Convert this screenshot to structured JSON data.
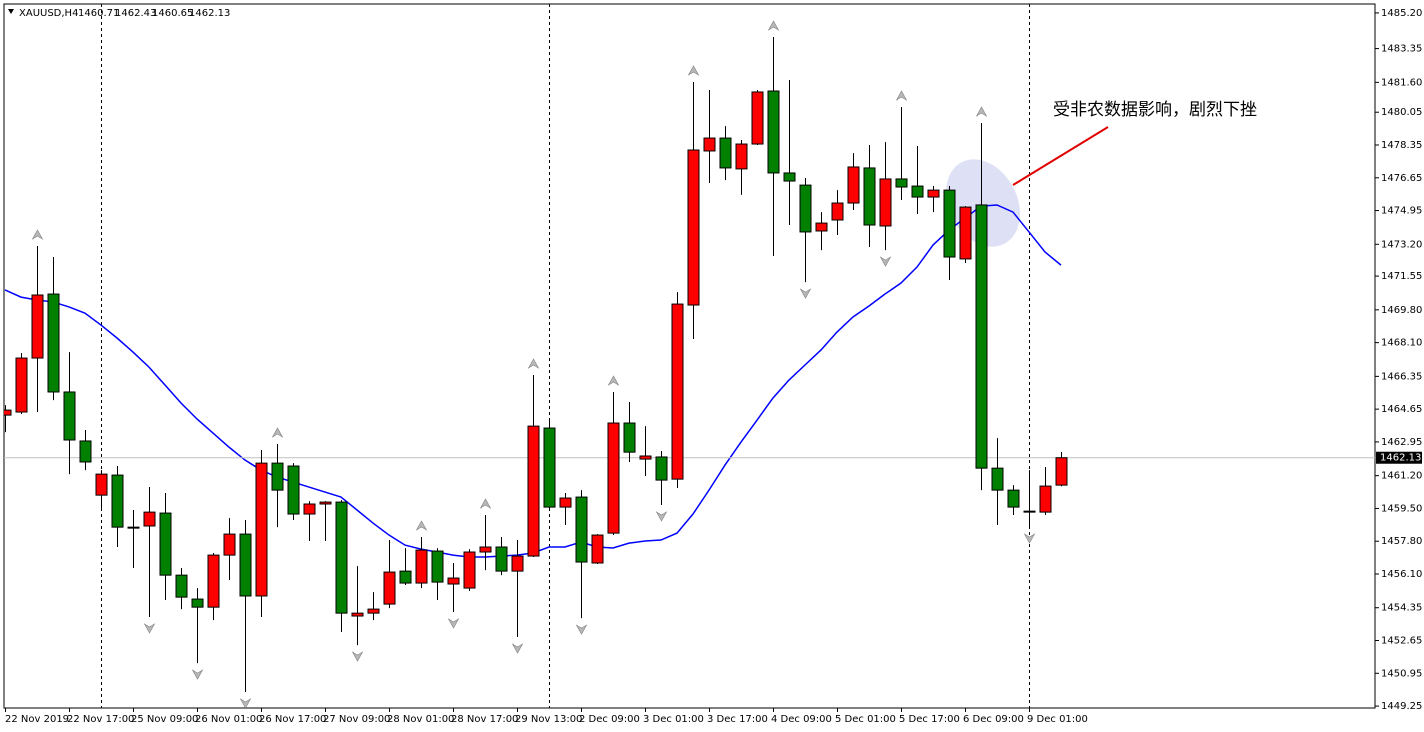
{
  "chart_data": {
    "type": "candlestick",
    "title": "XAUUSD,H4",
    "annotation": "受非农数据影响，剧烈下挫",
    "categories": [
      "22 Nov 2019",
      null,
      null,
      null,
      "22 Nov 17:00",
      null,
      null,
      null,
      "25 Nov 09:00",
      null,
      null,
      null,
      "26 Nov 01:00",
      null,
      null,
      null,
      "26 Nov 17:00",
      null,
      null,
      null,
      "27 Nov 09:00",
      null,
      null,
      null,
      "28 Nov 01:00",
      null,
      null,
      null,
      "28 Nov 17:00",
      null,
      null,
      null,
      "29 Nov 13:00",
      null,
      null,
      null,
      "2 Dec 09:00",
      null,
      null,
      null,
      "3 Dec 01:00",
      null,
      null,
      null,
      "3 Dec 17:00",
      null,
      null,
      null,
      "4 Dec 09:00",
      null,
      null,
      null,
      "5 Dec 01:00",
      null,
      null,
      null,
      "5 Dec 17:00",
      null,
      null,
      null,
      "6 Dec 09:00",
      null,
      null,
      null,
      "9 Dec 01:00",
      null,
      null
    ],
    "open": [
      1464.34,
      1464.5,
      1467.3,
      1470.62,
      1465.54,
      1463.0,
      1460.19,
      1461.23,
      1458.53,
      1458.59,
      1459.26,
      1456.04,
      1454.8,
      1454.38,
      1457.08,
      1458.17,
      1454.96,
      1461.85,
      1461.7,
      1459.21,
      1459.73,
      1459.83,
      1453.92,
      1454.07,
      1454.54,
      1456.25,
      1455.63,
      1457.29,
      1455.58,
      1455.37,
      1457.24,
      1457.5,
      1456.25,
      1457.03,
      1463.67,
      1459.57,
      1460.09,
      1456.67,
      1458.22,
      1463.93,
      1462.06,
      1462.17,
      1461.02,
      1470.05,
      1478.04,
      1478.71,
      1477.11,
      1478.4,
      1481.15,
      1476.9,
      1476.27,
      1473.89,
      1474.46,
      1475.34,
      1477.16,
      1474.15,
      1476.59,
      1476.22,
      1475.65,
      1476.01,
      1472.44,
      1475.24,
      1461.59,
      1460.45,
      1459.36,
      1459.31,
      1460.71
    ],
    "high": [
      1464.86,
      1467.56,
      1473.11,
      1472.54,
      1467.61,
      1463.57,
      1461.49,
      1461.7,
      1459.42,
      1460.61,
      1460.3,
      1456.41,
      1455.37,
      1457.19,
      1459.0,
      1458.9,
      1462.53,
      1462.84,
      1461.85,
      1459.88,
      1459.88,
      1459.93,
      1456.51,
      1455.16,
      1457.86,
      1457.44,
      1458.02,
      1457.44,
      1456.67,
      1457.39,
      1459.16,
      1458.02,
      1457.86,
      1466.42,
      1464.08,
      1460.3,
      1460.45,
      1458.17,
      1465.54,
      1465.02,
      1463.77,
      1462.48,
      1470.72,
      1481.62,
      1481.2,
      1479.33,
      1478.61,
      1481.2,
      1483.95,
      1481.72,
      1476.64,
      1474.87,
      1476.01,
      1477.93,
      1478.35,
      1478.5,
      1480.32,
      1478.3,
      1476.22,
      1476.22,
      1475.18,
      1479.49,
      1463.15,
      1460.71,
      1461.49,
      1461.65,
      1462.43
    ],
    "low": [
      1463.46,
      1464.4,
      1464.5,
      1465.12,
      1461.28,
      1461.49,
      1459.42,
      1457.5,
      1456.41,
      1453.87,
      1454.75,
      1454.28,
      1451.48,
      1453.71,
      1455.79,
      1449.98,
      1453.87,
      1458.53,
      1458.9,
      1457.81,
      1457.81,
      1453.09,
      1452.41,
      1453.71,
      1454.33,
      1455.53,
      1455.37,
      1454.75,
      1454.13,
      1455.22,
      1456.3,
      1456.04,
      1452.83,
      1456.98,
      1459.47,
      1458.64,
      1453.81,
      1456.62,
      1458.12,
      1461.91,
      1461.18,
      1459.68,
      1460.56,
      1468.29,
      1476.38,
      1476.53,
      1475.76,
      1478.35,
      1472.59,
      1474.2,
      1471.24,
      1472.9,
      1473.68,
      1474.98,
      1473.06,
      1472.9,
      1475.5,
      1474.77,
      1474.87,
      1471.35,
      1472.23,
      1460.45,
      1458.64,
      1459.16,
      1458.53,
      1459.16,
      1460.65
    ],
    "close": [
      1464.6,
      1467.3,
      1470.57,
      1465.54,
      1463.05,
      1461.91,
      1461.28,
      1458.53,
      1458.53,
      1459.31,
      1456.04,
      1454.9,
      1454.38,
      1457.08,
      1458.17,
      1454.96,
      1461.85,
      1460.45,
      1459.21,
      1459.73,
      1459.83,
      1454.07,
      1454.07,
      1454.28,
      1456.2,
      1455.63,
      1457.34,
      1455.68,
      1455.89,
      1457.24,
      1457.5,
      1456.25,
      1457.03,
      1463.77,
      1459.57,
      1460.04,
      1456.72,
      1458.12,
      1463.93,
      1462.42,
      1462.22,
      1460.97,
      1470.1,
      1478.09,
      1478.71,
      1477.16,
      1478.4,
      1481.1,
      1476.9,
      1476.48,
      1473.84,
      1474.3,
      1475.34,
      1477.21,
      1474.2,
      1476.59,
      1476.17,
      1475.65,
      1476.01,
      1472.54,
      1475.13,
      1461.59,
      1460.45,
      1459.57,
      1459.36,
      1460.66,
      1462.13
    ],
    "up_color": "#ff0000",
    "down_color": "#008000",
    "ma": {
      "color": "#0000ff",
      "values": [
        1470.83,
        1470.46,
        1470.31,
        1470.21,
        1469.95,
        1469.63,
        1469.01,
        1468.34,
        1467.61,
        1466.83,
        1465.9,
        1464.97,
        1464.14,
        1463.41,
        1462.68,
        1462.01,
        1461.49,
        1461.13,
        1460.87,
        1460.61,
        1460.35,
        1460.09,
        1459.42,
        1458.74,
        1458.12,
        1457.6,
        1457.39,
        1457.24,
        1457.08,
        1456.98,
        1456.98,
        1457.03,
        1457.08,
        1457.19,
        1457.5,
        1457.5,
        1457.76,
        1457.5,
        1457.45,
        1457.7,
        1457.81,
        1457.86,
        1458.22,
        1459.21,
        1460.45,
        1461.75,
        1462.94,
        1464.08,
        1465.23,
        1466.16,
        1466.94,
        1467.72,
        1468.65,
        1469.43,
        1470.0,
        1470.62,
        1471.19,
        1472.02,
        1473.16,
        1473.94,
        1474.56,
        1475.18,
        1475.24,
        1474.87,
        1473.84,
        1472.8,
        1472.12
      ]
    },
    "ylim": [
      1449.15,
      1485.87
    ],
    "yticks": [
      {
        "value": 1485.2,
        "label": "1485.20"
      },
      {
        "value": 1483.35,
        "label": "1483.35"
      },
      {
        "value": 1481.6,
        "label": "1481.60"
      },
      {
        "value": 1480.05,
        "label": "1480.05"
      },
      {
        "value": 1478.35,
        "label": "1478.35"
      },
      {
        "value": 1476.65,
        "label": "1476.65"
      },
      {
        "value": 1474.95,
        "label": "1474.95"
      },
      {
        "value": 1473.2,
        "label": "1473.20"
      },
      {
        "value": 1471.55,
        "label": "1471.55"
      },
      {
        "value": 1469.8,
        "label": "1469.80"
      },
      {
        "value": 1468.1,
        "label": "1468.10"
      },
      {
        "value": 1466.35,
        "label": "1466.35"
      },
      {
        "value": 1464.65,
        "label": "1464.65"
      },
      {
        "value": 1462.95,
        "label": "1462.95"
      },
      {
        "value": 1461.2,
        "label": "1461.20"
      },
      {
        "value": 1459.5,
        "label": "1459.50"
      },
      {
        "value": 1457.8,
        "label": "1457.80"
      },
      {
        "value": 1456.1,
        "label": "1456.10"
      },
      {
        "value": 1454.35,
        "label": "1454.35"
      },
      {
        "value": 1452.65,
        "label": "1452.65"
      },
      {
        "value": 1450.95,
        "label": "1450.95"
      },
      {
        "value": 1449.25,
        "label": "1449.25"
      }
    ],
    "grid": false
  }
}
